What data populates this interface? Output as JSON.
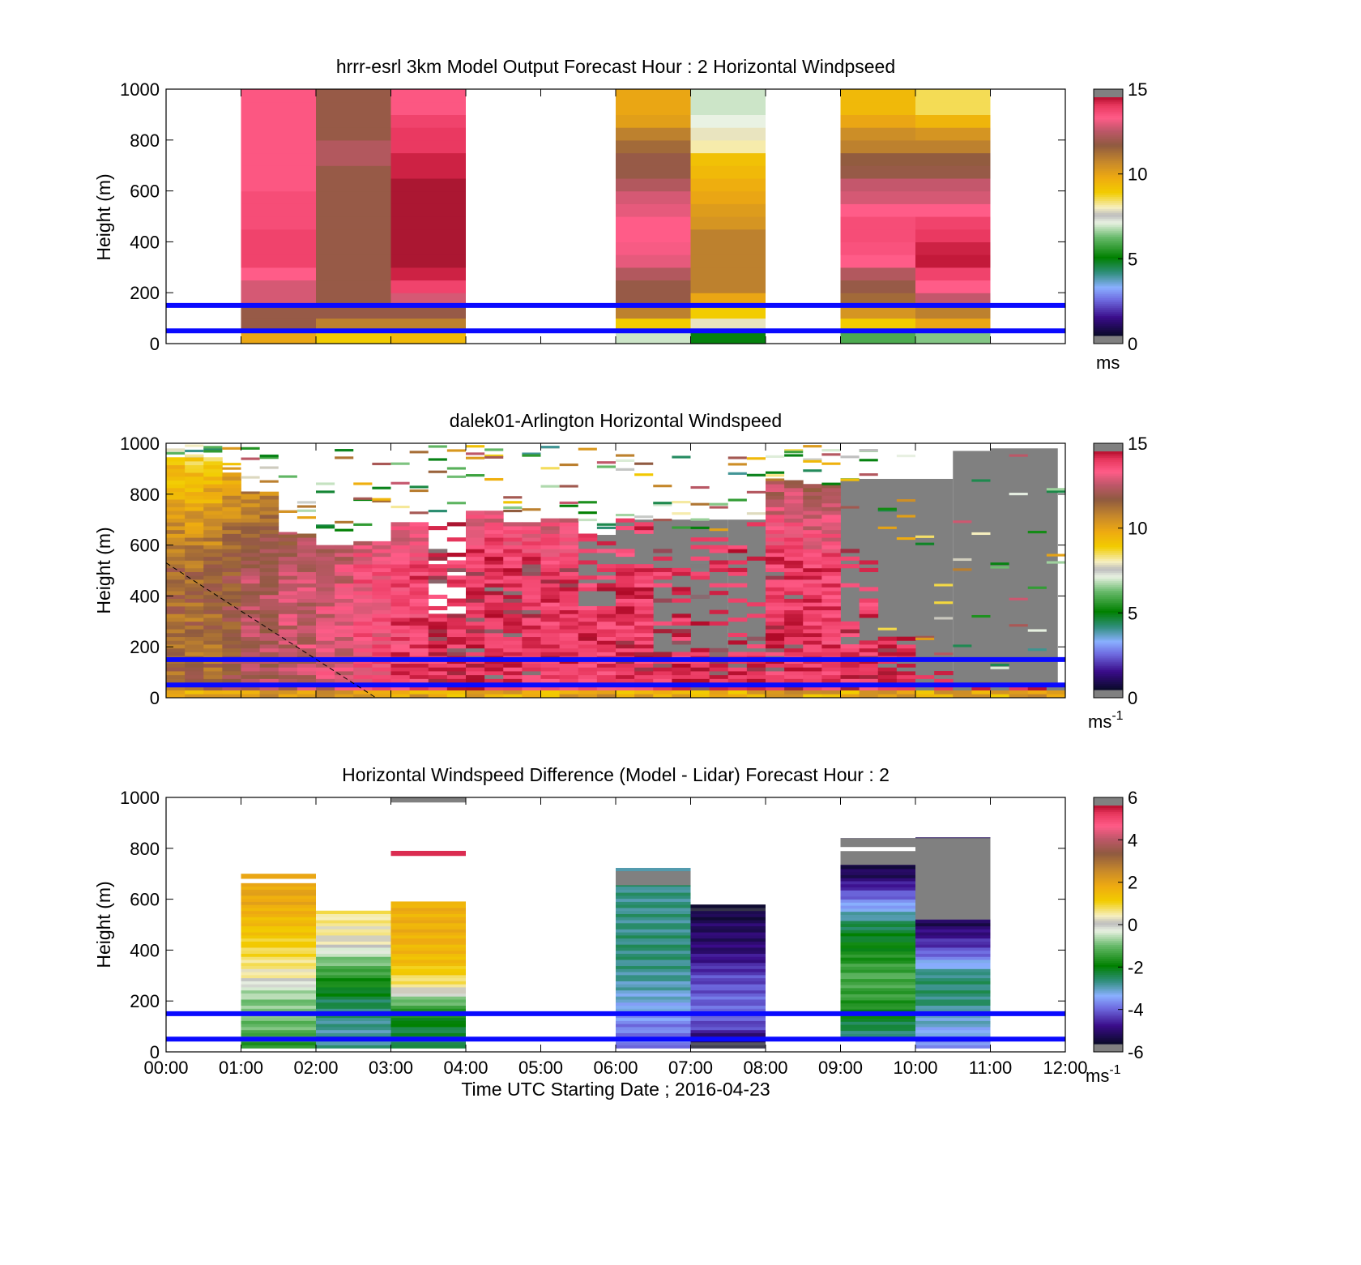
{
  "shared": {
    "time_ticks": [
      "00:00",
      "01:00",
      "02:00",
      "03:00",
      "04:00",
      "05:00",
      "06:00",
      "07:00",
      "08:00",
      "09:00",
      "10:00",
      "11:00",
      "12:00"
    ],
    "xlabel": "Time UTC  Starting Date ; 2016-04-23",
    "ylabel": "Height (m)",
    "height_ticks": [
      "0",
      "200",
      "400",
      "600",
      "800",
      "1000"
    ]
  },
  "chart_data": [
    {
      "type": "heatmap",
      "title": "hrrr-esrl 3km Model Output   Forecast Hour : 2 Horizontal Windpseed",
      "xlabel": "",
      "ylabel": "Height (m)",
      "xlim": [
        0,
        12
      ],
      "ylim": [
        0,
        1000
      ],
      "colorbar": {
        "range": [
          0,
          15
        ],
        "ticks": [
          "0",
          "5",
          "10",
          "15"
        ],
        "label": "ms",
        "label_sup": ""
      },
      "reference_lines_m": [
        50,
        150
      ],
      "hours": [
        1,
        2,
        3,
        6,
        7,
        9,
        10
      ],
      "heights_m": [
        25,
        75,
        125,
        175,
        225,
        275,
        325,
        375,
        425,
        475,
        525,
        575,
        625,
        675,
        725,
        775,
        825,
        875,
        925,
        975
      ],
      "values": [
        [
          10,
          12,
          12,
          13,
          13,
          13.5,
          14,
          14,
          14,
          13.8,
          13.8,
          13.8,
          13.6,
          13.6,
          13.6,
          13.6,
          13.6,
          13.6,
          13.6,
          13.6
        ],
        [
          9,
          11,
          12,
          12,
          12,
          12,
          12,
          12,
          12,
          12,
          12,
          12,
          12,
          12,
          12.5,
          12.5,
          12,
          12,
          12,
          12
        ],
        [
          9.5,
          11,
          12,
          13,
          14,
          14.5,
          14.8,
          14.8,
          14.8,
          14.8,
          14.8,
          14.8,
          14.8,
          14.5,
          14.5,
          14.2,
          14.2,
          14,
          13.6,
          13.6
        ],
        [
          7,
          9,
          11,
          12,
          12,
          12.5,
          13.2,
          13.4,
          13.5,
          13.5,
          13.2,
          13,
          12.5,
          12,
          12,
          11.5,
          11,
          10.2,
          10,
          10
        ],
        [
          5,
          8,
          9,
          10,
          11,
          11,
          11,
          11,
          11,
          10.5,
          10.3,
          10,
          9.8,
          9.5,
          9.3,
          8.2,
          8,
          7.2,
          7,
          7
        ],
        [
          6,
          9,
          10.5,
          11.5,
          12,
          12.5,
          13.5,
          13.7,
          13.8,
          13.8,
          13.5,
          13,
          12.8,
          12,
          11.8,
          11,
          10.7,
          10,
          9.5,
          9.5
        ],
        [
          6.5,
          10,
          11,
          12.8,
          13.5,
          14,
          14.6,
          14.5,
          14.2,
          14,
          13.5,
          13,
          12.8,
          12,
          11.8,
          11,
          10.5,
          9.6,
          8.6,
          8.6
        ]
      ]
    },
    {
      "type": "heatmap",
      "title": "dalek01-Arlington  Horizontal Windspeed",
      "xlabel": "",
      "ylabel": "Height (m)",
      "xlim": [
        0,
        12
      ],
      "ylim": [
        0,
        1000
      ],
      "colorbar": {
        "range": [
          0,
          15
        ],
        "ticks": [
          "0",
          "5",
          "10",
          "15"
        ],
        "label": "ms",
        "label_sup": "-1"
      },
      "reference_lines_m": [
        50,
        150
      ],
      "lidar_profiles": {
        "interval_h": 0.25,
        "bands": [
          {
            "t0": 0.0,
            "t1": 0.75,
            "top": 940,
            "gray_below": 0,
            "base": 11.5
          },
          {
            "t0": 0.75,
            "t1": 1.0,
            "top": 880,
            "gray_below": 0,
            "base": 12.0
          },
          {
            "t0": 1.0,
            "t1": 1.5,
            "top": 800,
            "gray_below": 0,
            "base": 12.5
          },
          {
            "t0": 1.5,
            "t1": 2.0,
            "top": 640,
            "gray_below": 0,
            "base": 12.8
          },
          {
            "t0": 2.0,
            "t1": 2.5,
            "top": 600,
            "gray_below": 0,
            "base": 13.0
          },
          {
            "t0": 2.5,
            "t1": 3.0,
            "top": 610,
            "gray_below": 0,
            "base": 13.6
          },
          {
            "t0": 3.0,
            "t1": 3.5,
            "top": 690,
            "gray_below": 0,
            "base": 14.0
          },
          {
            "t0": 3.5,
            "t1": 4.0,
            "top": 720,
            "gray_below": 320,
            "base": 14.3
          },
          {
            "t0": 4.0,
            "t1": 4.5,
            "top": 730,
            "gray_below": 0,
            "base": 14.4
          },
          {
            "t0": 4.5,
            "t1": 5.0,
            "top": 680,
            "gray_below": 0,
            "base": 14.3
          },
          {
            "t0": 5.0,
            "t1": 5.5,
            "top": 700,
            "gray_below": 0,
            "base": 14.2
          },
          {
            "t0": 5.5,
            "t1": 6.0,
            "top": 640,
            "gray_below": 350,
            "base": 14.1
          },
          {
            "t0": 6.0,
            "t1": 6.5,
            "top": 700,
            "gray_below": 520,
            "base": 14.2
          },
          {
            "t0": 6.5,
            "t1": 7.0,
            "top": 650,
            "gray_below": 170,
            "base": 14.3
          },
          {
            "t0": 7.0,
            "t1": 7.5,
            "top": 640,
            "gray_below": 180,
            "base": 14.5
          },
          {
            "t0": 7.5,
            "t1": 8.0,
            "top": 690,
            "gray_below": 170,
            "base": 14.4
          },
          {
            "t0": 8.0,
            "t1": 8.5,
            "top": 850,
            "gray_below": 0,
            "base": 14.3
          },
          {
            "t0": 8.5,
            "t1": 9.0,
            "top": 830,
            "gray_below": 0,
            "base": 14.0
          },
          {
            "t0": 9.0,
            "t1": 9.5,
            "top": 640,
            "gray_below": 200,
            "base": 14.2
          },
          {
            "t0": 9.5,
            "t1": 10.0,
            "top": 230,
            "gray_below": 0,
            "base": 14.5
          },
          {
            "t0": 10.0,
            "t1": 10.5,
            "top": 100,
            "gray_below": 0,
            "base": 14.7
          },
          {
            "t0": 10.5,
            "t1": 12.0,
            "top": 40,
            "gray_below": 0,
            "base": 14.9
          }
        ],
        "gray_region_tops": [
          {
            "t0": 5.5,
            "t1": 6.0,
            "top": 640
          },
          {
            "t0": 6.0,
            "t1": 7.5,
            "top": 700
          },
          {
            "t0": 7.5,
            "t1": 8.0,
            "top": 700
          },
          {
            "t0": 9.0,
            "t1": 10.0,
            "top": 860
          },
          {
            "t0": 10.0,
            "t1": 10.5,
            "top": 860
          },
          {
            "t0": 10.5,
            "t1": 11.0,
            "top": 970
          },
          {
            "t0": 11.0,
            "t1": 11.9,
            "top": 980
          }
        ]
      },
      "dashed_line": {
        "x": [
          0.0,
          2.8
        ],
        "y": [
          530,
          0
        ]
      }
    },
    {
      "type": "heatmap",
      "title": "Horizontal Windspeed Difference (Model - Lidar) Forecast Hour : 2",
      "xlabel": "Time UTC  Starting Date ; 2016-04-23",
      "ylabel": "Height (m)",
      "xlim": [
        0,
        12
      ],
      "ylim": [
        0,
        1000
      ],
      "colorbar": {
        "range": [
          -6,
          6
        ],
        "ticks": [
          "-6",
          "-4",
          "-2",
          "0",
          "2",
          "4",
          "6"
        ],
        "label": "ms",
        "label_sup": "-1"
      },
      "reference_lines_m": [
        50,
        150
      ],
      "hours": [
        1,
        2,
        3,
        6,
        7,
        9,
        10
      ],
      "columns": [
        {
          "hour": 1,
          "top": 660,
          "extra": [
            {
              "y0": 680,
              "y1": 700,
              "v": 2
            }
          ],
          "values_by_height": [
            [
              25,
              -1.5
            ],
            [
              100,
              -1
            ],
            [
              200,
              -0.8
            ],
            [
              260,
              -0.3
            ],
            [
              300,
              0.5
            ],
            [
              400,
              1
            ],
            [
              500,
              1.5
            ],
            [
              600,
              2
            ]
          ]
        },
        {
          "hour": 2,
          "top": 545,
          "extra": [],
          "values_by_height": [
            [
              25,
              -2.8
            ],
            [
              100,
              -2.8
            ],
            [
              200,
              -2.4
            ],
            [
              300,
              -1.5
            ],
            [
              380,
              -0.6
            ],
            [
              420,
              0.2
            ],
            [
              460,
              0.5
            ],
            [
              545,
              0.7
            ]
          ]
        },
        {
          "hour": 3,
          "top": 590,
          "extra": [
            {
              "y0": 770,
              "y1": 790,
              "v": 5.5
            },
            {
              "y0": 980,
              "y1": 1000,
              "v": 6
            }
          ],
          "values_by_height": [
            [
              25,
              -2.5
            ],
            [
              100,
              -2.2
            ],
            [
              200,
              -1
            ],
            [
              250,
              0.5
            ],
            [
              350,
              1.5
            ],
            [
              450,
              1.8
            ],
            [
              590,
              1.8
            ]
          ]
        },
        {
          "hour": 6,
          "top": 720,
          "extra": [],
          "values_by_height": [
            [
              25,
              -3.8
            ],
            [
              100,
              -3.8
            ],
            [
              200,
              -3.2
            ],
            [
              300,
              -2.8
            ],
            [
              400,
              -2.6
            ],
            [
              500,
              -2.7
            ],
            [
              650,
              -2.7
            ]
          ]
        },
        {
          "hour": 7,
          "top": 575,
          "extra": [],
          "values_by_height": [
            [
              25,
              -5.8
            ],
            [
              100,
              -4.2
            ],
            [
              200,
              -4.0
            ],
            [
              300,
              -4.3
            ],
            [
              400,
              -5.0
            ],
            [
              500,
              -5.2
            ],
            [
              575,
              -5.6
            ]
          ]
        },
        {
          "hour": 9,
          "top": 840,
          "extra": [],
          "values_by_height": [
            [
              60,
              -2.6
            ],
            [
              100,
              -2.4
            ],
            [
              200,
              -1.5
            ],
            [
              300,
              -1.2
            ],
            [
              400,
              -1.8
            ],
            [
              500,
              -2.4
            ],
            [
              600,
              -3.8
            ],
            [
              700,
              -5.3
            ]
          ]
        },
        {
          "hour": 10,
          "top": 840,
          "extra": [],
          "values_by_height": [
            [
              25,
              -3.8
            ],
            [
              100,
              -3.2
            ],
            [
              200,
              -2.6
            ],
            [
              300,
              -2.6
            ],
            [
              400,
              -4.2
            ],
            [
              500,
              -5.2
            ]
          ]
        }
      ]
    }
  ]
}
